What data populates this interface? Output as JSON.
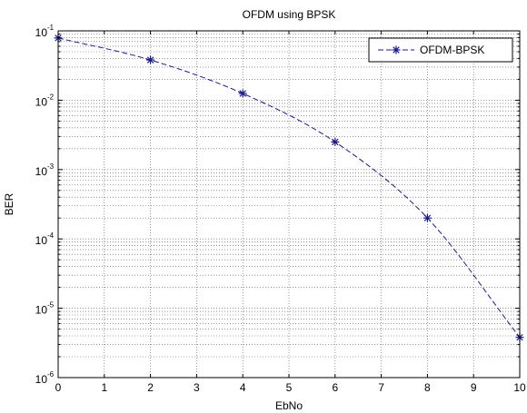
{
  "chart_data": {
    "type": "line",
    "title": "OFDM using BPSK",
    "xlabel": "EbNo",
    "ylabel": "BER",
    "xlim": [
      0,
      10
    ],
    "ylim": [
      1e-06,
      0.1
    ],
    "yscale": "log",
    "grid": true,
    "legend_position": "top-right",
    "x_ticks": [
      "0",
      "1",
      "2",
      "3",
      "4",
      "5",
      "6",
      "7",
      "8",
      "9",
      "10"
    ],
    "y_ticks": [
      {
        "value": 1e-06,
        "base": "10",
        "exp": "-6"
      },
      {
        "value": 1e-05,
        "base": "10",
        "exp": "-5"
      },
      {
        "value": 0.0001,
        "base": "10",
        "exp": "-4"
      },
      {
        "value": 0.001,
        "base": "10",
        "exp": "-3"
      },
      {
        "value": 0.01,
        "base": "10",
        "exp": "-2"
      },
      {
        "value": 0.1,
        "base": "10",
        "exp": "-1"
      }
    ],
    "series": [
      {
        "name": "OFDM-BPSK",
        "color": "#1a1a8c",
        "marker": "asterisk",
        "line_style": "dashed",
        "x": [
          0,
          2,
          4,
          6,
          8,
          10
        ],
        "y": [
          0.079,
          0.038,
          0.0125,
          0.0025,
          0.0002,
          3.8e-06
        ]
      }
    ]
  }
}
